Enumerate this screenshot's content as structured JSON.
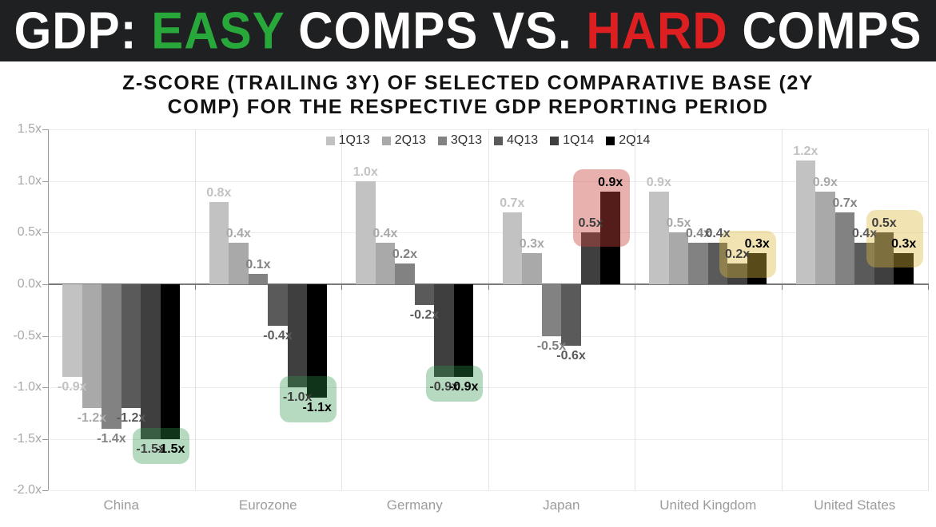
{
  "banner": {
    "part1": "GDP: ",
    "easy": "EASY",
    "part2": " COMPS VS. ",
    "hard": "HARD",
    "part3": " COMPS",
    "easy_color": "#28a83b",
    "hard_color": "#de1f21",
    "background": "#1f2022",
    "text_color": "#ffffff"
  },
  "subtitle": {
    "line1": "Z-SCORE (TRAILING 3Y) OF SELECTED COMPARATIVE BASE (2Y",
    "line2": "COMP) FOR THE RESPECTIVE GDP REPORTING PERIOD"
  },
  "chart_data": {
    "type": "bar",
    "title": "Z-SCORE (TRAILING 3Y) OF SELECTED COMPARATIVE BASE (2Y COMP) FOR THE RESPECTIVE GDP REPORTING PERIOD",
    "categories": [
      "China",
      "Eurozone",
      "Germany",
      "Japan",
      "United Kingdom",
      "United States"
    ],
    "series": [
      {
        "name": "1Q13",
        "color": "#c2c2c2",
        "values": [
          -0.9,
          0.8,
          1.0,
          0.7,
          0.9,
          1.2
        ]
      },
      {
        "name": "2Q13",
        "color": "#a9a9a9",
        "values": [
          -1.2,
          0.4,
          0.4,
          0.3,
          0.5,
          0.9
        ]
      },
      {
        "name": "3Q13",
        "color": "#828282",
        "values": [
          -1.4,
          0.1,
          0.2,
          -0.5,
          0.4,
          0.7
        ]
      },
      {
        "name": "4Q13",
        "color": "#5a5a5a",
        "values": [
          -1.2,
          -0.4,
          -0.2,
          -0.6,
          0.4,
          0.4
        ]
      },
      {
        "name": "1Q14",
        "color": "#3f3f3f",
        "values": [
          -1.5,
          -1.0,
          -0.9,
          0.5,
          0.2,
          0.5
        ]
      },
      {
        "name": "2Q14",
        "color": "#000000",
        "values": [
          -1.5,
          -1.1,
          -0.9,
          0.9,
          0.3,
          0.3
        ]
      }
    ],
    "value_suffix": "x",
    "y_ticks": [
      "1.5x",
      "1.0x",
      "0.5x",
      "0.0x",
      "-0.5x",
      "-1.0x",
      "-1.5x",
      "-2.0x"
    ],
    "ylim": [
      -2.0,
      1.5
    ],
    "grid": true,
    "legend_position": "top-center",
    "highlights": [
      {
        "category": "China",
        "series": [
          "1Q14",
          "2Q14"
        ],
        "color": "rgba(47,150,75,0.35)"
      },
      {
        "category": "Eurozone",
        "series": [
          "1Q14",
          "2Q14"
        ],
        "color": "rgba(47,150,75,0.35)"
      },
      {
        "category": "Germany",
        "series": [
          "1Q14",
          "2Q14"
        ],
        "color": "rgba(47,150,75,0.35)"
      },
      {
        "category": "Japan",
        "series": [
          "1Q14",
          "2Q14"
        ],
        "color": "rgba(200,68,62,0.42)"
      },
      {
        "category": "United Kingdom",
        "series": [
          "1Q14",
          "2Q14"
        ],
        "color": "rgba(222,186,66,0.40)"
      },
      {
        "category": "United States",
        "series": [
          "1Q14",
          "2Q14"
        ],
        "color": "rgba(222,186,66,0.40)"
      }
    ]
  }
}
